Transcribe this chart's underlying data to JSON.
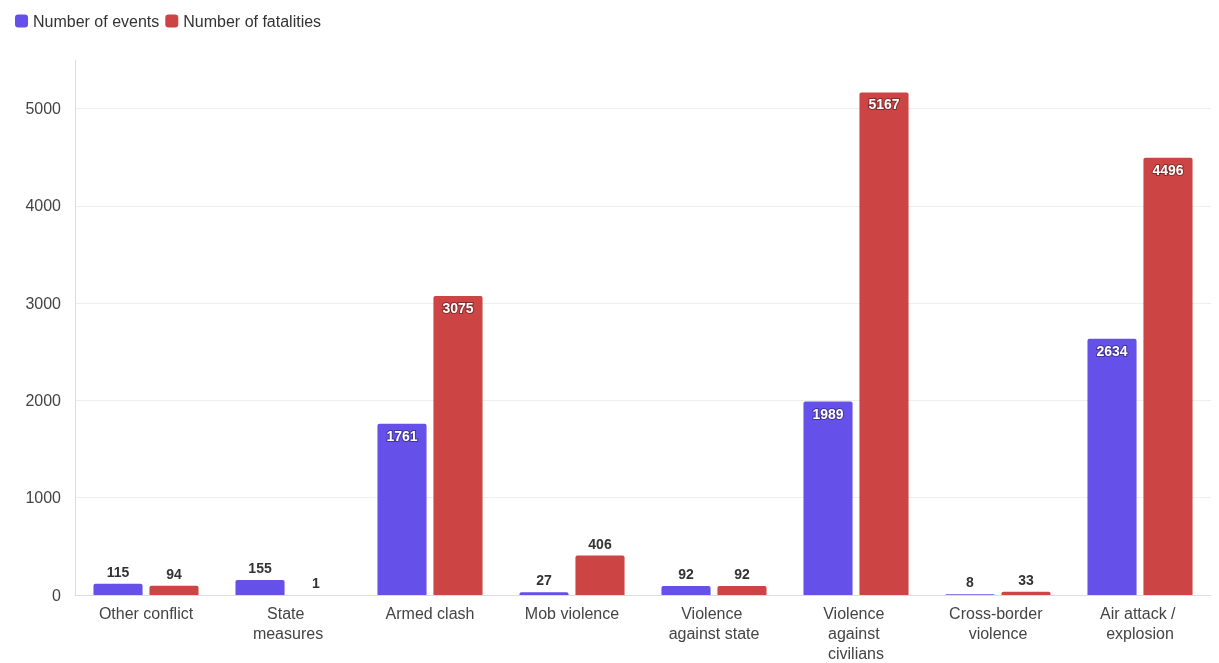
{
  "chart_data": {
    "type": "bar",
    "categories": [
      "Other conflict",
      "State measures",
      "Armed clash",
      "Mob violence",
      "Violence against state",
      "Violence against civilians",
      "Cross-border violence",
      "Air attack / explosion"
    ],
    "series": [
      {
        "name": "Number of events",
        "color": "#6650ea",
        "values": [
          115,
          155,
          1761,
          27,
          92,
          1989,
          8,
          2634
        ]
      },
      {
        "name": "Number of fatalities",
        "color": "#cc4444",
        "values": [
          94,
          1,
          3075,
          406,
          92,
          5167,
          33,
          4496
        ]
      }
    ],
    "ylim": [
      0,
      5500
    ],
    "yticks": [
      0,
      1000,
      2000,
      3000,
      4000,
      5000
    ],
    "grid": "y",
    "legend": "top left",
    "data_labels": true
  }
}
